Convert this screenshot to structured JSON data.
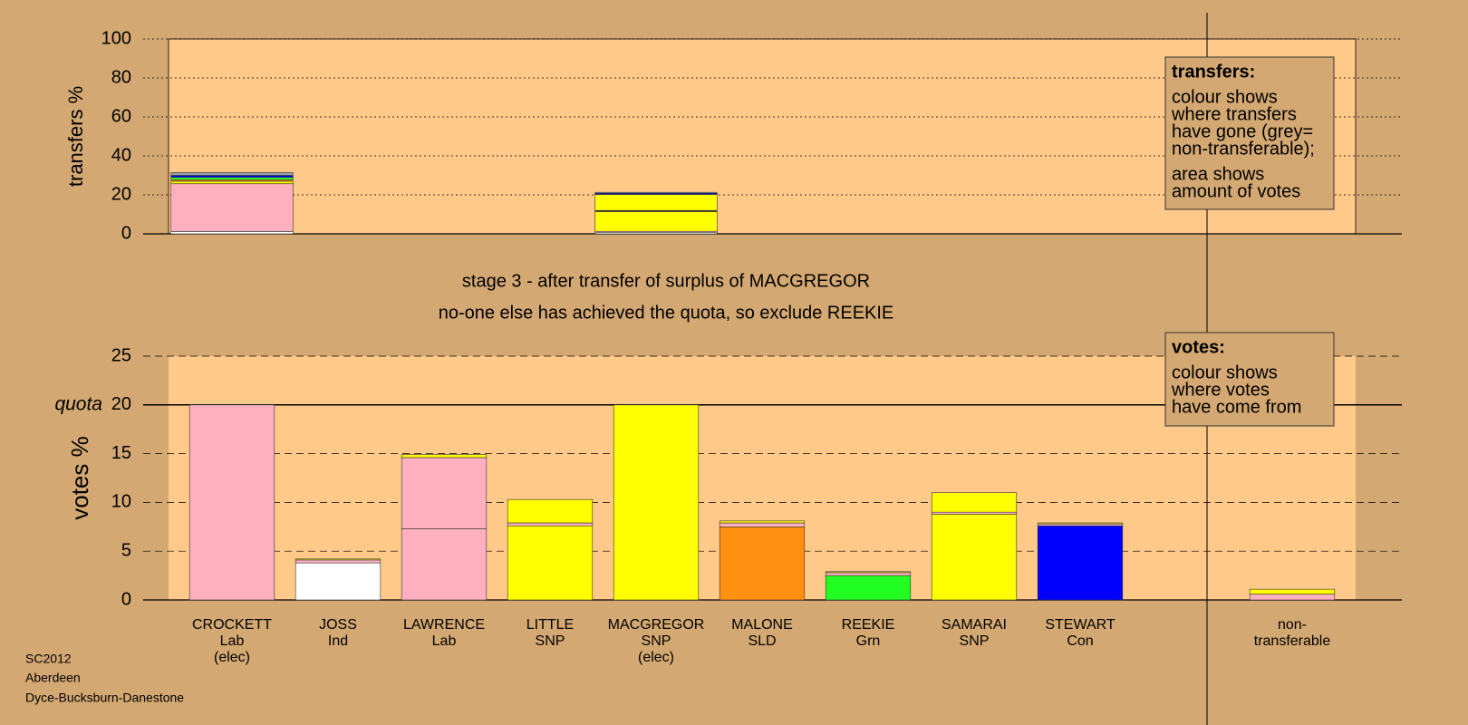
{
  "chart_data": [
    {
      "type": "stacked_bar",
      "ylabel": "transfers %",
      "ylim": [
        0,
        100
      ],
      "yticks": [
        0,
        20,
        40,
        60,
        80,
        100
      ],
      "stacks": [
        [
          {
            "value": 1.2,
            "color": "#ffffff"
          },
          {
            "value": 24.5,
            "color": "#ffb0c0"
          },
          {
            "value": 1.3,
            "color": "#ffff00"
          },
          {
            "value": 0.8,
            "color": "#ff9010"
          },
          {
            "value": 1.2,
            "color": "#20ff20"
          },
          {
            "value": 1.0,
            "color": "#0000ff"
          },
          {
            "value": 1.5,
            "color": "#a0a0a0"
          }
        ],
        null,
        null,
        null,
        [
          {
            "value": 0.8,
            "color": "#ffffff"
          },
          {
            "value": 0.5,
            "color": "#ffb0c0"
          },
          {
            "value": 10.0,
            "color": "#ffff00"
          },
          {
            "value": 0.4,
            "color": "#ff9010"
          },
          {
            "value": 0.3,
            "color": "#20ff20"
          },
          {
            "value": 8.2,
            "color": "#ffff00"
          },
          {
            "value": 0.6,
            "color": "#0000ff"
          },
          {
            "value": 0.5,
            "color": "#a0a0a0"
          }
        ],
        null,
        null,
        null,
        null,
        null,
        null
      ]
    },
    {
      "type": "stacked_bar",
      "ylabel": "votes %",
      "ylim": [
        0,
        25
      ],
      "yticks": [
        0,
        5,
        10,
        15,
        20,
        25
      ],
      "quota": 20,
      "quota_label": "quota",
      "categories": [
        [
          "CROCKETT",
          "Lab",
          "(elec)"
        ],
        [
          "JOSS",
          "Ind"
        ],
        [
          "LAWRENCE",
          "Lab"
        ],
        [
          "LITTLE",
          "SNP"
        ],
        [
          "MACGREGOR",
          "SNP",
          "(elec)"
        ],
        [
          "MALONE",
          "SLD"
        ],
        [
          "REEKIE",
          "Grn"
        ],
        [
          "SAMARAI",
          "SNP"
        ],
        [
          "STEWART",
          "Con"
        ],
        null,
        [
          "non-",
          "transferable"
        ]
      ],
      "stacks": [
        [
          {
            "value": 20,
            "color": "#ffb0c0"
          }
        ],
        [
          {
            "value": 3.8,
            "color": "#ffffff"
          },
          {
            "value": 0.3,
            "color": "#ffb0c0"
          },
          {
            "value": 0.1,
            "color": "#ffff00"
          }
        ],
        [
          {
            "value": 7.3,
            "color": "#ffb0c0"
          },
          {
            "value": 7.3,
            "color": "#ffb0c0"
          },
          {
            "value": 0.3,
            "color": "#ffff00"
          }
        ],
        [
          {
            "value": 7.6,
            "color": "#ffff00"
          },
          {
            "value": 0.3,
            "color": "#ffb0c0"
          },
          {
            "value": 2.4,
            "color": "#ffff00"
          }
        ],
        [
          {
            "value": 20,
            "color": "#ffff00"
          }
        ],
        [
          {
            "value": 7.5,
            "color": "#ff9010"
          },
          {
            "value": 0.4,
            "color": "#ffb0c0"
          },
          {
            "value": 0.2,
            "color": "#ffff00"
          }
        ],
        [
          {
            "value": 2.5,
            "color": "#20ff20"
          },
          {
            "value": 0.3,
            "color": "#ffb0c0"
          },
          {
            "value": 0.1,
            "color": "#ffff00"
          }
        ],
        [
          {
            "value": 8.8,
            "color": "#ffff00"
          },
          {
            "value": 0.2,
            "color": "#ffb0c0"
          },
          {
            "value": 2.0,
            "color": "#ffff00"
          }
        ],
        [
          {
            "value": 7.6,
            "color": "#0000ff"
          },
          {
            "value": 0.2,
            "color": "#ffb0c0"
          },
          {
            "value": 0.1,
            "color": "#ffff00"
          }
        ],
        null,
        [
          {
            "value": 0.6,
            "color": "#ffb0c0"
          },
          {
            "value": 0.5,
            "color": "#ffff00"
          }
        ]
      ]
    }
  ],
  "annotations": [
    "stage 3 - after transfer of surplus of MACGREGOR",
    "no-one else has achieved the quota, so exclude REEKIE"
  ],
  "notes": [
    {
      "title": "transfers:",
      "paragraphs": [
        [
          "colour shows",
          "where transfers",
          "have gone (grey=",
          "non-transferable);"
        ],
        [
          "area shows",
          "amount of votes"
        ]
      ]
    },
    {
      "title": "votes:",
      "paragraphs": [
        [
          "colour shows",
          "where votes",
          "have come from"
        ]
      ]
    }
  ],
  "footer": [
    "SC2012",
    "Aberdeen",
    "Dyce-Bucksburn-Danestone"
  ]
}
